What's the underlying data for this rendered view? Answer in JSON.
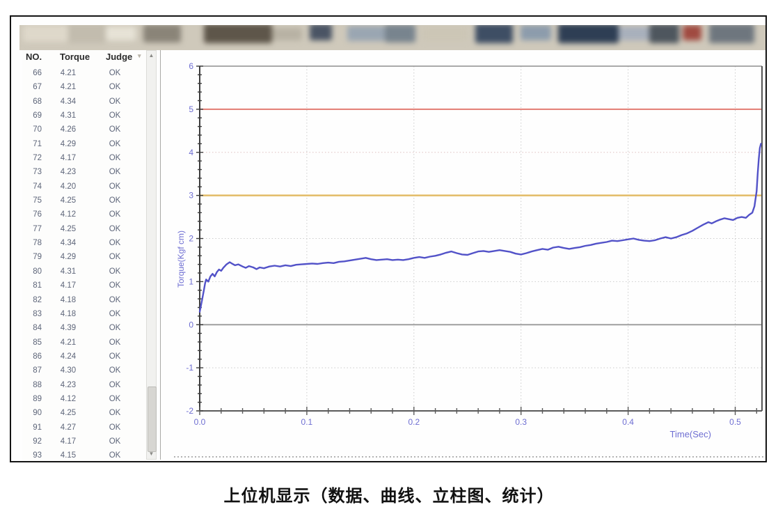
{
  "caption": "上位机显示（数据、曲线、立柱图、统计）",
  "table": {
    "columns": [
      "NO.",
      "Torque",
      "Judge"
    ],
    "rows": [
      [
        "66",
        "4.21",
        "OK"
      ],
      [
        "67",
        "4.21",
        "OK"
      ],
      [
        "68",
        "4.34",
        "OK"
      ],
      [
        "69",
        "4.31",
        "OK"
      ],
      [
        "70",
        "4.26",
        "OK"
      ],
      [
        "71",
        "4.29",
        "OK"
      ],
      [
        "72",
        "4.17",
        "OK"
      ],
      [
        "73",
        "4.23",
        "OK"
      ],
      [
        "74",
        "4.20",
        "OK"
      ],
      [
        "75",
        "4.25",
        "OK"
      ],
      [
        "76",
        "4.12",
        "OK"
      ],
      [
        "77",
        "4.25",
        "OK"
      ],
      [
        "78",
        "4.34",
        "OK"
      ],
      [
        "79",
        "4.29",
        "OK"
      ],
      [
        "80",
        "4.31",
        "OK"
      ],
      [
        "81",
        "4.17",
        "OK"
      ],
      [
        "82",
        "4.18",
        "OK"
      ],
      [
        "83",
        "4.18",
        "OK"
      ],
      [
        "84",
        "4.39",
        "OK"
      ],
      [
        "85",
        "4.21",
        "OK"
      ],
      [
        "86",
        "4.24",
        "OK"
      ],
      [
        "87",
        "4.30",
        "OK"
      ],
      [
        "88",
        "4.23",
        "OK"
      ],
      [
        "89",
        "4.12",
        "OK"
      ],
      [
        "90",
        "4.25",
        "OK"
      ],
      [
        "91",
        "4.27",
        "OK"
      ],
      [
        "92",
        "4.17",
        "OK"
      ],
      [
        "93",
        "4.15",
        "OK"
      ]
    ]
  },
  "chart_data": {
    "type": "line",
    "title": "",
    "xlabel": "Time(Sec)",
    "ylabel": "Torque(Kgf cm)",
    "xlim": [
      0,
      0.525
    ],
    "ylim": [
      -2,
      6
    ],
    "x_ticks": [
      0.0,
      0.1,
      0.2,
      0.3,
      0.4,
      0.5
    ],
    "y_ticks": [
      -2,
      -1,
      0,
      1,
      2,
      3,
      4,
      5,
      6
    ],
    "x_minor_step": 0.02,
    "y_minor_step": 0.2,
    "grid": "dotted",
    "axis_label_color": "#6e6ed2",
    "reference_lines": [
      {
        "name": "upper-limit-line",
        "value": 5,
        "color": "#e37b72",
        "width": 2
      },
      {
        "name": "lower-limit-line",
        "value": 3,
        "color": "#e2bb66",
        "width": 2.5
      },
      {
        "name": "zero-line",
        "value": 0,
        "color": "#9f9f9f",
        "width": 2
      }
    ],
    "series": [
      {
        "name": "torque-curve",
        "color": "#5252c8",
        "points": [
          [
            0.0,
            0.3
          ],
          [
            0.002,
            0.55
          ],
          [
            0.004,
            0.82
          ],
          [
            0.005,
            0.96
          ],
          [
            0.006,
            1.05
          ],
          [
            0.008,
            1.0
          ],
          [
            0.01,
            1.12
          ],
          [
            0.012,
            1.18
          ],
          [
            0.014,
            1.12
          ],
          [
            0.016,
            1.22
          ],
          [
            0.018,
            1.28
          ],
          [
            0.02,
            1.25
          ],
          [
            0.022,
            1.32
          ],
          [
            0.025,
            1.4
          ],
          [
            0.028,
            1.45
          ],
          [
            0.03,
            1.42
          ],
          [
            0.033,
            1.38
          ],
          [
            0.036,
            1.4
          ],
          [
            0.04,
            1.35
          ],
          [
            0.043,
            1.32
          ],
          [
            0.046,
            1.36
          ],
          [
            0.05,
            1.33
          ],
          [
            0.053,
            1.29
          ],
          [
            0.056,
            1.33
          ],
          [
            0.06,
            1.31
          ],
          [
            0.065,
            1.35
          ],
          [
            0.07,
            1.37
          ],
          [
            0.075,
            1.35
          ],
          [
            0.08,
            1.38
          ],
          [
            0.085,
            1.36
          ],
          [
            0.09,
            1.39
          ],
          [
            0.095,
            1.4
          ],
          [
            0.1,
            1.41
          ],
          [
            0.105,
            1.42
          ],
          [
            0.11,
            1.41
          ],
          [
            0.115,
            1.43
          ],
          [
            0.12,
            1.44
          ],
          [
            0.125,
            1.43
          ],
          [
            0.13,
            1.46
          ],
          [
            0.135,
            1.47
          ],
          [
            0.14,
            1.49
          ],
          [
            0.145,
            1.51
          ],
          [
            0.15,
            1.53
          ],
          [
            0.155,
            1.55
          ],
          [
            0.16,
            1.52
          ],
          [
            0.165,
            1.5
          ],
          [
            0.17,
            1.51
          ],
          [
            0.175,
            1.52
          ],
          [
            0.18,
            1.5
          ],
          [
            0.185,
            1.51
          ],
          [
            0.19,
            1.5
          ],
          [
            0.195,
            1.52
          ],
          [
            0.2,
            1.55
          ],
          [
            0.205,
            1.57
          ],
          [
            0.21,
            1.55
          ],
          [
            0.215,
            1.58
          ],
          [
            0.22,
            1.6
          ],
          [
            0.225,
            1.63
          ],
          [
            0.23,
            1.67
          ],
          [
            0.235,
            1.7
          ],
          [
            0.24,
            1.66
          ],
          [
            0.245,
            1.63
          ],
          [
            0.25,
            1.62
          ],
          [
            0.255,
            1.66
          ],
          [
            0.26,
            1.7
          ],
          [
            0.265,
            1.71
          ],
          [
            0.27,
            1.69
          ],
          [
            0.275,
            1.71
          ],
          [
            0.28,
            1.73
          ],
          [
            0.285,
            1.71
          ],
          [
            0.29,
            1.69
          ],
          [
            0.295,
            1.65
          ],
          [
            0.3,
            1.63
          ],
          [
            0.305,
            1.66
          ],
          [
            0.31,
            1.7
          ],
          [
            0.315,
            1.73
          ],
          [
            0.32,
            1.76
          ],
          [
            0.325,
            1.74
          ],
          [
            0.33,
            1.79
          ],
          [
            0.335,
            1.81
          ],
          [
            0.34,
            1.78
          ],
          [
            0.345,
            1.76
          ],
          [
            0.35,
            1.78
          ],
          [
            0.355,
            1.8
          ],
          [
            0.36,
            1.83
          ],
          [
            0.365,
            1.85
          ],
          [
            0.37,
            1.88
          ],
          [
            0.375,
            1.9
          ],
          [
            0.38,
            1.92
          ],
          [
            0.385,
            1.95
          ],
          [
            0.39,
            1.94
          ],
          [
            0.395,
            1.96
          ],
          [
            0.4,
            1.98
          ],
          [
            0.405,
            2.0
          ],
          [
            0.41,
            1.97
          ],
          [
            0.415,
            1.95
          ],
          [
            0.42,
            1.94
          ],
          [
            0.425,
            1.96
          ],
          [
            0.43,
            2.0
          ],
          [
            0.435,
            2.03
          ],
          [
            0.44,
            2.0
          ],
          [
            0.445,
            2.03
          ],
          [
            0.45,
            2.08
          ],
          [
            0.455,
            2.12
          ],
          [
            0.46,
            2.18
          ],
          [
            0.465,
            2.25
          ],
          [
            0.47,
            2.32
          ],
          [
            0.475,
            2.38
          ],
          [
            0.478,
            2.35
          ],
          [
            0.482,
            2.4
          ],
          [
            0.486,
            2.44
          ],
          [
            0.49,
            2.47
          ],
          [
            0.494,
            2.45
          ],
          [
            0.498,
            2.43
          ],
          [
            0.502,
            2.48
          ],
          [
            0.506,
            2.5
          ],
          [
            0.51,
            2.48
          ],
          [
            0.513,
            2.55
          ],
          [
            0.516,
            2.6
          ],
          [
            0.518,
            2.75
          ],
          [
            0.52,
            3.1
          ],
          [
            0.521,
            3.5
          ],
          [
            0.522,
            3.85
          ],
          [
            0.523,
            4.1
          ],
          [
            0.524,
            4.2
          ]
        ]
      }
    ]
  }
}
